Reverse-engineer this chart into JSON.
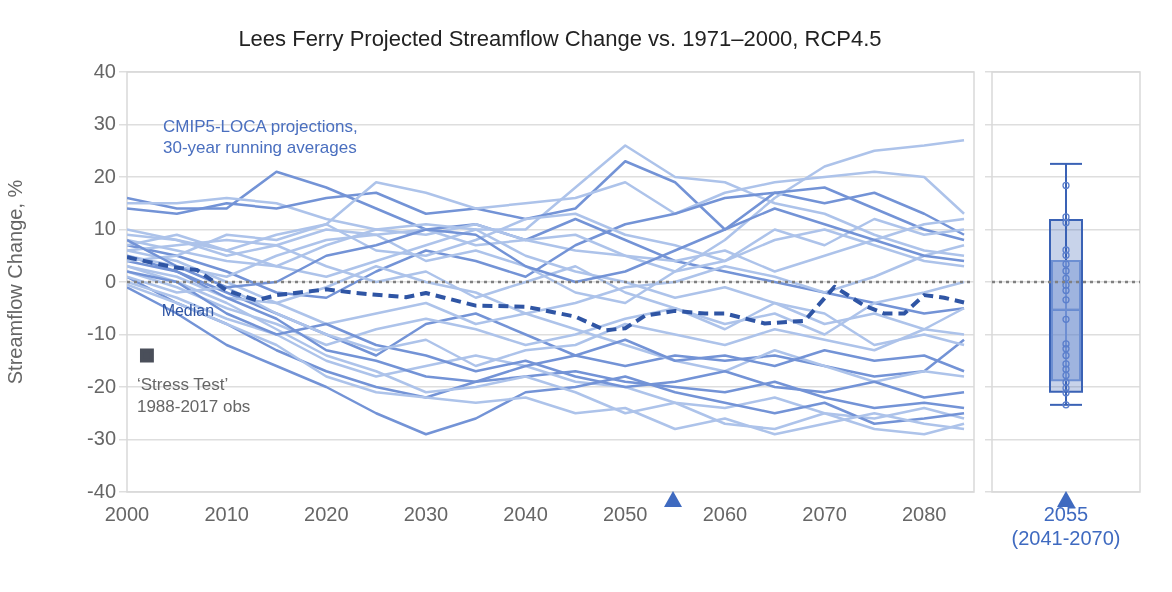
{
  "chart_data": [
    {
      "type": "line",
      "title": "Lees Ferry Projected Streamflow Change vs. 1971–2000, RCP4.5",
      "ylabel": "Streamflow Change, %",
      "annotations": [
        "CMIP5-LOCA projections, 30-year running averages"
      ],
      "x": [
        2000,
        2005,
        2010,
        2015,
        2020,
        2025,
        2030,
        2035,
        2040,
        2045,
        2050,
        2055,
        2060,
        2065,
        2070,
        2075,
        2080,
        2084
      ],
      "series": [
        {
          "color": "#7393d6",
          "values": [
            16,
            14,
            14,
            21,
            18,
            14,
            10,
            11,
            8,
            12,
            8,
            4,
            2,
            0,
            -2,
            -4,
            -6,
            -5
          ]
        },
        {
          "color": "#adc3ea",
          "values": [
            15,
            15,
            16,
            15,
            12,
            10,
            11,
            10,
            10,
            18,
            26,
            20,
            19,
            15,
            13,
            9,
            6,
            5
          ]
        },
        {
          "color": "#7393d6",
          "values": [
            14,
            13,
            15,
            14,
            16,
            17,
            13,
            14,
            12,
            14,
            23,
            19,
            10,
            17,
            15,
            17,
            13,
            9
          ]
        },
        {
          "color": "#adc3ea",
          "values": [
            10,
            8,
            6,
            9,
            11,
            19,
            17,
            14,
            15,
            16,
            19,
            13,
            17,
            19,
            20,
            21,
            20,
            13
          ]
        },
        {
          "color": "#adc3ea",
          "values": [
            8,
            6,
            4,
            3,
            7,
            10,
            9,
            11,
            8,
            6,
            5,
            2,
            8,
            16,
            22,
            25,
            26,
            27
          ]
        },
        {
          "color": "#7393d6",
          "values": [
            7,
            5,
            2,
            -2,
            -3,
            2,
            6,
            4,
            1,
            7,
            11,
            13,
            16,
            17,
            18,
            14,
            10,
            8
          ]
        },
        {
          "color": "#adc3ea",
          "values": [
            6,
            7,
            8,
            7,
            10,
            9,
            10,
            7,
            8,
            9,
            5,
            4,
            6,
            2,
            5,
            8,
            11,
            12
          ]
        },
        {
          "color": "#adc3ea",
          "values": [
            5,
            3,
            1,
            5,
            8,
            9,
            4,
            6,
            3,
            -2,
            -4,
            2,
            4,
            8,
            10,
            7,
            4,
            3
          ]
        },
        {
          "color": "#7393d6",
          "values": [
            4,
            2,
            -2,
            -6,
            -10,
            -14,
            -8,
            -6,
            -10,
            -14,
            -16,
            -14,
            -15,
            -14,
            -16,
            -18,
            -17,
            -11
          ]
        },
        {
          "color": "#adc3ea",
          "values": [
            3,
            1,
            -3,
            -4,
            -1,
            3,
            0,
            -2,
            -6,
            -4,
            -1,
            0,
            3,
            1,
            -2,
            1,
            5,
            7
          ]
        },
        {
          "color": "#adc3ea",
          "values": [
            2,
            -1,
            -5,
            -8,
            -12,
            -9,
            -7,
            -9,
            -12,
            -10,
            -7,
            -5,
            -8,
            -6,
            -10,
            -4,
            -2,
            0
          ]
        },
        {
          "color": "#7393d6",
          "values": [
            1,
            -4,
            -8,
            -13,
            -17,
            -20,
            -22,
            -19,
            -18,
            -17,
            -19,
            -20,
            -21,
            -19,
            -22,
            -24,
            -23,
            -24
          ]
        },
        {
          "color": "#adc3ea",
          "values": [
            0,
            -3,
            -7,
            -10,
            -15,
            -18,
            -16,
            -14,
            -16,
            -19,
            -20,
            -23,
            -24,
            -22,
            -25,
            -26,
            -24,
            -26
          ]
        },
        {
          "color": "#7393d6",
          "values": [
            -1,
            -6,
            -12,
            -16,
            -20,
            -25,
            -29,
            -26,
            -21,
            -20,
            -18,
            -21,
            -23,
            -25,
            -23,
            -27,
            -26,
            -25
          ]
        },
        {
          "color": "#adc3ea",
          "values": [
            6,
            4,
            0,
            -4,
            -8,
            -6,
            -4,
            -8,
            -6,
            -9,
            -12,
            -15,
            -17,
            -13,
            -16,
            -19,
            -17,
            -18
          ]
        },
        {
          "color": "#adc3ea",
          "values": [
            9,
            8,
            5,
            7,
            3,
            0,
            2,
            -3,
            0,
            3,
            -2,
            -5,
            -9,
            -4,
            -6,
            -12,
            -10,
            -12
          ]
        },
        {
          "color": "#adc3ea",
          "values": [
            3,
            0,
            -4,
            -9,
            -14,
            -17,
            -21,
            -20,
            -18,
            -21,
            -25,
            -23,
            -27,
            -28,
            -25,
            -28,
            -29,
            -27
          ]
        },
        {
          "color": "#7393d6",
          "values": [
            5,
            2,
            -3,
            -7,
            -13,
            -15,
            -18,
            -19,
            -16,
            -14,
            -11,
            -15,
            -14,
            -16,
            -13,
            -15,
            -14,
            -17
          ]
        },
        {
          "color": "#adc3ea",
          "values": [
            7,
            9,
            6,
            3,
            1,
            4,
            7,
            10,
            5,
            2,
            0,
            -3,
            -1,
            -4,
            -8,
            -6,
            -9,
            -10
          ]
        },
        {
          "color": "#adc3ea",
          "values": [
            4,
            5,
            9,
            8,
            11,
            6,
            5,
            8,
            12,
            13,
            9,
            7,
            4,
            10,
            7,
            12,
            9,
            10
          ]
        },
        {
          "color": "#7393d6",
          "values": [
            2,
            0,
            -6,
            -10,
            -8,
            -12,
            -14,
            -17,
            -15,
            -18,
            -20,
            -19,
            -17,
            -20,
            -21,
            -19,
            -22,
            -21
          ]
        },
        {
          "color": "#adc3ea",
          "values": [
            1,
            -2,
            -1,
            -6,
            -10,
            -13,
            -11,
            -16,
            -13,
            -12,
            -8,
            -10,
            -12,
            -9,
            -11,
            -13,
            -9,
            -5
          ]
        },
        {
          "color": "#adc3ea",
          "values": [
            -0.5,
            -4,
            -8,
            -12,
            -18,
            -21,
            -22,
            -23,
            -22,
            -25,
            -24,
            -28,
            -26,
            -29,
            -27,
            -25,
            -27,
            -28
          ]
        },
        {
          "color": "#7393d6",
          "values": [
            8,
            3,
            -1,
            0,
            5,
            7,
            10,
            9,
            3,
            0,
            2,
            6,
            10,
            14,
            11,
            8,
            5,
            4
          ]
        },
        {
          "name": "Median",
          "color": "#2f55a4",
          "line_style": "dashed",
          "x": [
            2000,
            2005,
            2007,
            2010,
            2013,
            2015,
            2020,
            2023,
            2028,
            2030,
            2035,
            2040,
            2045,
            2048,
            2050,
            2052,
            2055,
            2058,
            2060,
            2064,
            2068,
            2071,
            2074,
            2076,
            2078,
            2080,
            2082,
            2084
          ],
          "values": [
            4.7,
            2.7,
            2.3,
            -1.6,
            -3.5,
            -2.5,
            -1.4,
            -2.1,
            -2.9,
            -2.1,
            -4.5,
            -4.7,
            -6.6,
            -9.2,
            -8.8,
            -6.4,
            -5.5,
            -6,
            -6,
            -7.9,
            -7.4,
            -0.9,
            -4.5,
            -6,
            -6,
            -2.5,
            -3,
            -3.9
          ]
        },
        {
          "name": "‘Stress Test’ 1988-2017 obs",
          "type": "scatter",
          "marker": "square",
          "color": "#4a4f5a",
          "x": [
            2002
          ],
          "values": [
            -14
          ]
        }
      ],
      "xlim": [
        2000,
        2085
      ],
      "xticks": [
        2000,
        2010,
        2020,
        2030,
        2040,
        2050,
        2060,
        2070,
        2080
      ],
      "ylim": [
        -40,
        40
      ],
      "yticks": [
        -40,
        -30,
        -20,
        -10,
        0,
        10,
        20,
        30,
        40
      ],
      "grid": "y",
      "legend": false,
      "marker": "none",
      "ref_lines": [
        {
          "axis": "y",
          "value": 0,
          "color": "#808080",
          "line_style": "dotted"
        }
      ]
    },
    {
      "type": "box",
      "categories": [
        "2055 (2041-2070)"
      ],
      "series": [
        {
          "type": "box",
          "color": "#3a62b5",
          "boxes": [
            {
              "low": -23.4,
              "q1": -20.9,
              "median": -5.3,
              "q3": 11.8,
              "high": 22.5
            }
          ]
        },
        {
          "type": "box",
          "color": "#6d8fd2",
          "boxes": [
            {
              "low": -18.7,
              "q1": -18.7,
              "median": -5.3,
              "q3": 4.0,
              "high": 4.0
            }
          ]
        },
        {
          "type": "scatter",
          "marker": "circle",
          "color": "#5b7fcc",
          "x": [
            "2055 (2041-2070)",
            "2055 (2041-2070)",
            "2055 (2041-2070)",
            "2055 (2041-2070)",
            "2055 (2041-2070)",
            "2055 (2041-2070)",
            "2055 (2041-2070)",
            "2055 (2041-2070)",
            "2055 (2041-2070)",
            "2055 (2041-2070)",
            "2055 (2041-2070)",
            "2055 (2041-2070)",
            "2055 (2041-2070)",
            "2055 (2041-2070)",
            "2055 (2041-2070)",
            "2055 (2041-2070)",
            "2055 (2041-2070)",
            "2055 (2041-2070)",
            "2055 (2041-2070)",
            "2055 (2041-2070)",
            "2055 (2041-2070)",
            "2055 (2041-2070)"
          ],
          "values": [
            18.4,
            12.4,
            11.3,
            6.1,
            5.1,
            3.4,
            2.1,
            0.7,
            -0.6,
            -1.6,
            -3.4,
            -7.1,
            -11.8,
            -12.7,
            -14.0,
            -15.6,
            -16.6,
            -17.8,
            -19.1,
            -20.2,
            -21.1,
            -23.4
          ]
        }
      ],
      "ylim": [
        -40,
        40
      ],
      "yticks": [
        -40,
        -30,
        -20,
        -10,
        0,
        10,
        20,
        30,
        40
      ],
      "grid": "y",
      "legend": false,
      "tick_labels": "x",
      "ref_lines": [
        {
          "axis": "y",
          "value": 0,
          "color": "#808080",
          "line_style": "dotted"
        }
      ]
    }
  ]
}
